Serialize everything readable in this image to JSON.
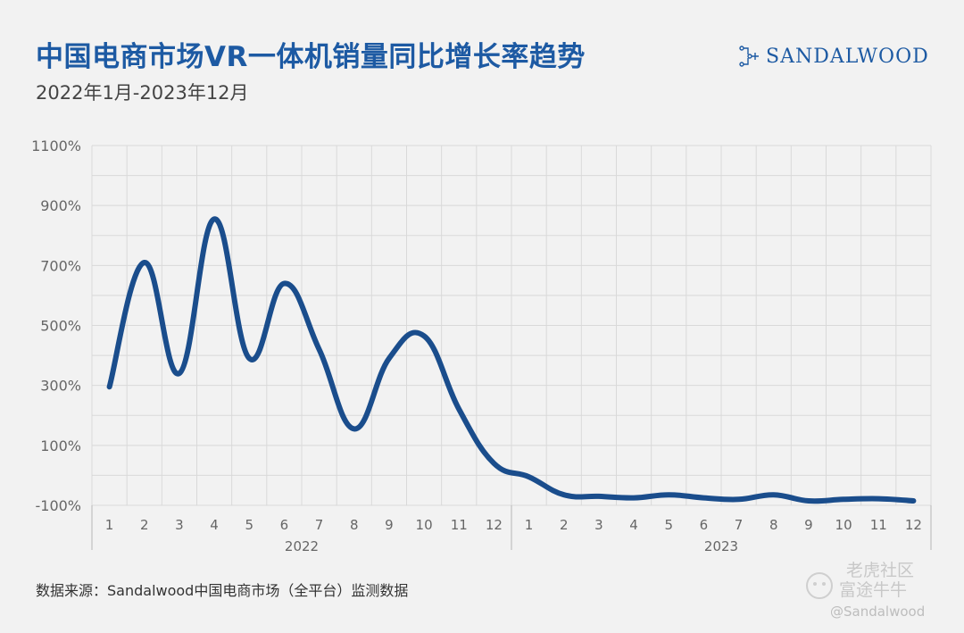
{
  "header": {
    "title": "中国电商市场VR一体机销量同比增长率趋势",
    "subtitle": "2022年1月-2023年12月",
    "brand": "SANDALWOOD"
  },
  "footer": {
    "source": "数据来源：Sandalwood中国电商市场（全平台）监测数据"
  },
  "watermark": {
    "line1": "老虎社区",
    "line2": "富途牛牛",
    "handle": "@Sandalwood"
  },
  "colors": {
    "line": "#1a4d8c",
    "title": "#1d5aa3",
    "grid": "#d9d9d9"
  },
  "chart_data": {
    "type": "line",
    "title": "中国电商市场VR一体机销量同比增长率趋势",
    "subtitle": "2022年1月-2023年12月",
    "y_ticks": [
      "1100%",
      "900%",
      "700%",
      "500%",
      "300%",
      "100%",
      "-100%"
    ],
    "ylim": [
      -100,
      1100
    ],
    "grid": true,
    "groups": [
      {
        "label": "2022",
        "categories": [
          "1",
          "2",
          "3",
          "4",
          "5",
          "6",
          "7",
          "8",
          "9",
          "10",
          "11",
          "12"
        ]
      },
      {
        "label": "2023",
        "categories": [
          "1",
          "2",
          "3",
          "4",
          "5",
          "6",
          "7",
          "8",
          "9",
          "10",
          "11",
          "12"
        ]
      }
    ],
    "series": [
      {
        "values": [
          295,
          710,
          340,
          855,
          390,
          640,
          420,
          155,
          390,
          465,
          220,
          40,
          -5,
          -65,
          -70,
          -75,
          -65,
          -75,
          -80,
          -65,
          -85,
          -80,
          -78,
          -85
        ]
      }
    ]
  }
}
